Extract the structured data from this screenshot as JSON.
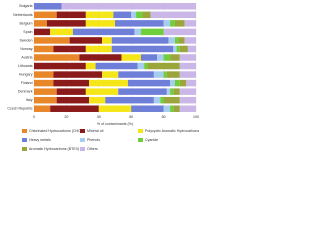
{
  "chart_data": {
    "type": "stacked-bar-horizontal",
    "x_label": "% of contaminants (%)",
    "categories": [
      "Bulgaria",
      "Netherlands",
      "Belgium",
      "Spain",
      "Sweden",
      "Norway",
      "Austria",
      "Lithuania",
      "Hungary",
      "Finland",
      "Denmark",
      "Italy",
      "Czech Republic"
    ],
    "series": [
      {
        "name": "Chlorinated Hydrocarbons (CHC)",
        "color": "#e8862a",
        "values": [
          0,
          14,
          8,
          0,
          22,
          12,
          28,
          0,
          12,
          12,
          14,
          14,
          10
        ]
      },
      {
        "name": "Mineral oil",
        "color": "#8b1a1a",
        "values": [
          0,
          18,
          24,
          10,
          20,
          20,
          26,
          32,
          30,
          22,
          18,
          20,
          30
        ]
      },
      {
        "name": "Polycyclic Aromatic Hydrocarbons (PAH)",
        "color": "#f5e61a",
        "values": [
          0,
          17,
          18,
          14,
          6,
          16,
          12,
          6,
          10,
          24,
          20,
          10,
          20
        ]
      },
      {
        "name": "Heavy metals",
        "color": "#6f7fd8",
        "values": [
          17,
          11,
          30,
          38,
          35,
          38,
          10,
          26,
          22,
          26,
          30,
          30,
          20
        ]
      },
      {
        "name": "Phenols",
        "color": "#a6cdf0",
        "values": [
          0,
          3,
          4,
          4,
          4,
          2,
          4,
          4,
          6,
          3,
          2,
          4,
          4
        ]
      },
      {
        "name": "Cyanide",
        "color": "#6fcf3a",
        "values": [
          0,
          4,
          3,
          14,
          2,
          2,
          4,
          2,
          2,
          3,
          2,
          2,
          2
        ]
      },
      {
        "name": "Aromatic Hydrocarbons (BTEX)",
        "color": "#9aa53c",
        "values": [
          0,
          5,
          6,
          0,
          4,
          5,
          6,
          20,
          8,
          4,
          4,
          10,
          4
        ]
      },
      {
        "name": "Others",
        "color": "#cbb6e8",
        "values": [
          83,
          28,
          7,
          20,
          7,
          5,
          10,
          10,
          10,
          6,
          10,
          10,
          10
        ]
      }
    ],
    "xlim": [
      0,
      100
    ],
    "xticks": [
      0,
      20,
      40,
      60,
      80,
      100
    ],
    "grid": true
  }
}
